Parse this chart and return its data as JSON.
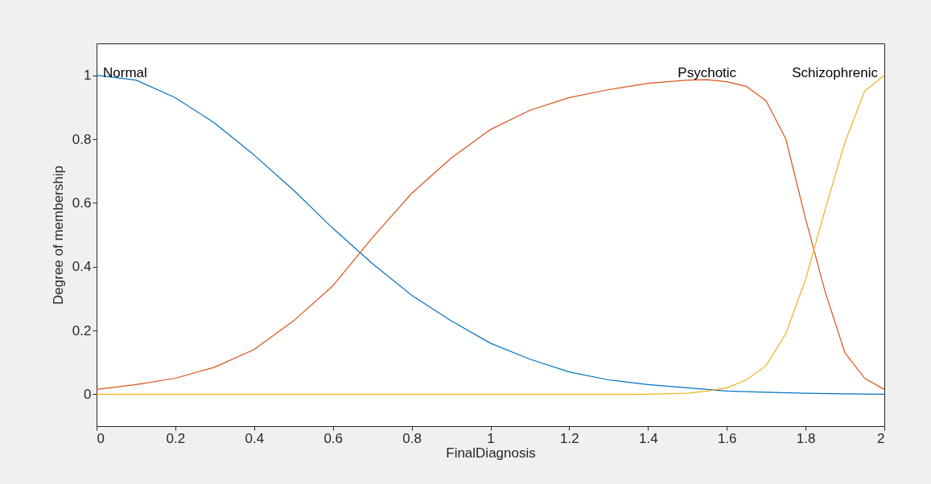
{
  "chart_data": {
    "type": "line",
    "xlabel": "FinalDiagnosis",
    "ylabel": "Degree of membership",
    "xlim": [
      0,
      2
    ],
    "xticks": [
      0,
      0.2,
      0.4,
      0.6,
      0.8,
      1,
      1.2,
      1.4,
      1.6,
      1.8,
      2
    ],
    "ylim": [
      -0.1,
      1.1
    ],
    "yticks": [
      0,
      0.2,
      0.4,
      0.6,
      0.8,
      1
    ],
    "grid": false,
    "legend": false,
    "marker": "none",
    "line_style": "solid",
    "series": [
      {
        "name": "Normal",
        "color": "#0072bd",
        "x": [
          0,
          0.1,
          0.2,
          0.3,
          0.4,
          0.5,
          0.6,
          0.7,
          0.8,
          0.9,
          1.0,
          1.1,
          1.2,
          1.3,
          1.4,
          1.5,
          1.6,
          1.7,
          1.8,
          1.9,
          2.0
        ],
        "values": [
          1.0,
          0.985,
          0.93,
          0.85,
          0.75,
          0.64,
          0.52,
          0.41,
          0.31,
          0.23,
          0.16,
          0.11,
          0.07,
          0.045,
          0.03,
          0.02,
          0.01,
          0.006,
          0.003,
          0.001,
          0
        ]
      },
      {
        "name": "Psychotic",
        "color": "#d95319",
        "x": [
          0,
          0.1,
          0.2,
          0.3,
          0.4,
          0.5,
          0.6,
          0.7,
          0.8,
          0.9,
          1.0,
          1.1,
          1.2,
          1.3,
          1.4,
          1.5,
          1.55,
          1.6,
          1.65,
          1.7,
          1.75,
          1.8,
          1.85,
          1.9,
          1.95,
          2.0
        ],
        "values": [
          0.015,
          0.03,
          0.05,
          0.085,
          0.14,
          0.23,
          0.34,
          0.49,
          0.63,
          0.74,
          0.83,
          0.89,
          0.93,
          0.955,
          0.975,
          0.985,
          0.986,
          0.98,
          0.965,
          0.92,
          0.8,
          0.55,
          0.32,
          0.13,
          0.05,
          0.015
        ]
      },
      {
        "name": "Schizophrenic",
        "color": "#edb120",
        "x": [
          0,
          0.5,
          1.0,
          1.4,
          1.5,
          1.55,
          1.6,
          1.65,
          1.7,
          1.75,
          1.8,
          1.85,
          1.9,
          1.95,
          2.0
        ],
        "values": [
          0,
          0,
          0,
          0,
          0.003,
          0.01,
          0.02,
          0.045,
          0.09,
          0.19,
          0.36,
          0.58,
          0.79,
          0.95,
          1.0
        ]
      }
    ]
  }
}
